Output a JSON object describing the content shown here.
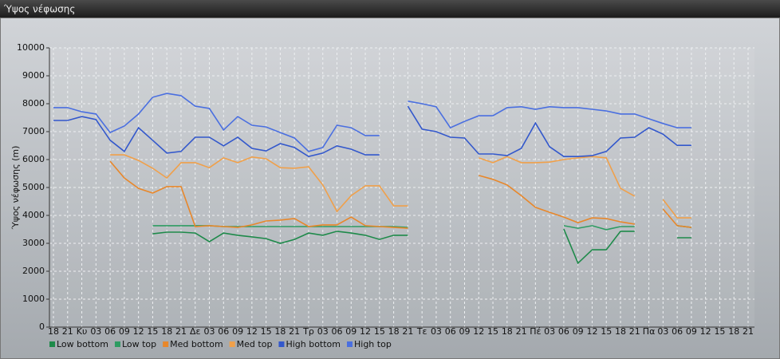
{
  "window_title": "Ύψος νέφωσης",
  "chart_data": {
    "type": "line",
    "ylabel": "Ύψος νέφωσης (m)",
    "categories": [
      "18",
      "21",
      "Κυ",
      "03",
      "06",
      "09",
      "12",
      "15",
      "18",
      "21",
      "Δε",
      "03",
      "06",
      "09",
      "12",
      "15",
      "18",
      "21",
      "Τρ",
      "03",
      "06",
      "09",
      "12",
      "15",
      "18",
      "21",
      "Τε",
      "03",
      "06",
      "09",
      "12",
      "15",
      "18",
      "21",
      "Πέ",
      "03",
      "06",
      "09",
      "12",
      "15",
      "18",
      "21",
      "Πα",
      "03",
      "06",
      "09",
      "12",
      "15",
      "18",
      "21"
    ],
    "ylim": [
      0,
      10000
    ],
    "yticks": [
      0,
      1000,
      2000,
      3000,
      4000,
      5000,
      6000,
      7000,
      8000,
      9000,
      10000
    ],
    "grid": true,
    "series": [
      {
        "name": "Low bottom",
        "color": "#1e8a4a",
        "values": [
          null,
          null,
          null,
          null,
          null,
          null,
          null,
          3340,
          3400,
          3400,
          3370,
          3060,
          3370,
          3290,
          3230,
          3170,
          3000,
          3140,
          3370,
          3290,
          3430,
          3370,
          3290,
          3140,
          3290,
          3290,
          null,
          null,
          null,
          null,
          null,
          null,
          null,
          null,
          null,
          null,
          3510,
          2290,
          2770,
          2770,
          3430,
          3430,
          null,
          null,
          3200,
          3200,
          null,
          null,
          null,
          null
        ]
      },
      {
        "name": "Low top",
        "color": "#2e9c62",
        "values": [
          null,
          null,
          null,
          null,
          null,
          null,
          null,
          3630,
          3630,
          3630,
          3630,
          3630,
          3600,
          3600,
          3600,
          3600,
          3600,
          3600,
          3600,
          3600,
          3600,
          3600,
          3600,
          3600,
          3600,
          3570,
          null,
          null,
          null,
          null,
          null,
          null,
          null,
          null,
          null,
          null,
          3630,
          3540,
          3630,
          3490,
          3600,
          3600,
          null,
          null,
          3630,
          3570,
          null,
          null,
          null,
          null
        ]
      },
      {
        "name": "Med bottom",
        "color": "#e8872a",
        "values": [
          null,
          null,
          null,
          null,
          5940,
          5340,
          4970,
          4800,
          5030,
          5030,
          3600,
          3630,
          3600,
          3570,
          3660,
          3800,
          3830,
          3890,
          3600,
          3660,
          3660,
          3940,
          3630,
          3600,
          3570,
          3540,
          null,
          null,
          null,
          null,
          5430,
          5290,
          5090,
          4710,
          4290,
          4110,
          3940,
          3740,
          3910,
          3890,
          3770,
          3690,
          null,
          4230,
          3630,
          3570,
          null,
          null,
          null,
          null
        ]
      },
      {
        "name": "Med top",
        "color": "#f0a04a",
        "values": [
          null,
          null,
          null,
          null,
          6170,
          6170,
          5970,
          5690,
          5340,
          5890,
          5890,
          5710,
          6060,
          5890,
          6090,
          6030,
          5710,
          5690,
          5740,
          5090,
          4140,
          4710,
          5060,
          5060,
          4340,
          4340,
          null,
          null,
          null,
          null,
          6060,
          5890,
          6110,
          5890,
          5890,
          5910,
          6000,
          6060,
          6110,
          6060,
          4970,
          4690,
          null,
          4570,
          3910,
          3910,
          null,
          null,
          null,
          null
        ]
      },
      {
        "name": "High bottom",
        "color": "#3358cc",
        "values": [
          7400,
          7400,
          7540,
          7430,
          6690,
          6290,
          7140,
          6690,
          6230,
          6290,
          6800,
          6800,
          6490,
          6800,
          6400,
          6310,
          6570,
          6430,
          6110,
          6230,
          6490,
          6370,
          6170,
          6170,
          null,
          7910,
          7090,
          7000,
          6800,
          6770,
          6200,
          6200,
          6140,
          6400,
          7310,
          6460,
          6110,
          6110,
          6140,
          6290,
          6770,
          6800,
          7140,
          6910,
          6510,
          6510,
          null,
          null,
          null,
          null
        ]
      },
      {
        "name": "High top",
        "color": "#4a6fe0",
        "values": [
          7860,
          7860,
          7710,
          7630,
          6970,
          7200,
          7630,
          8230,
          8370,
          8290,
          7910,
          7830,
          7060,
          7540,
          7230,
          7170,
          6970,
          6770,
          6290,
          6430,
          7230,
          7140,
          6860,
          6860,
          null,
          8090,
          8000,
          7890,
          7140,
          7370,
          7570,
          7570,
          7860,
          7890,
          7800,
          7890,
          7860,
          7860,
          7800,
          7740,
          7630,
          7630,
          7460,
          7290,
          7140,
          7140,
          null,
          null,
          null,
          null
        ]
      }
    ]
  }
}
